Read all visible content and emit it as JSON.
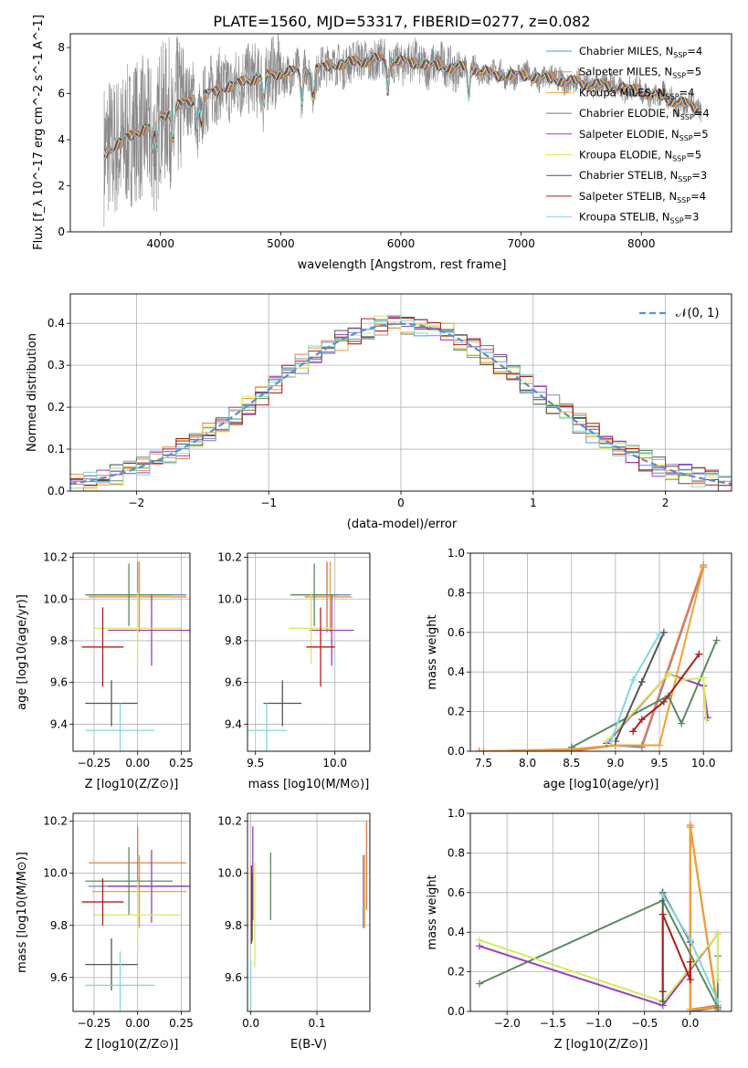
{
  "title": "PLATE=1560, MJD=53317, FIBERID=0277, z=0.082",
  "models": [
    {
      "name": "Chabrier MILES",
      "nssp": "4",
      "color": "#6a8cc8"
    },
    {
      "name": "Salpeter MILES",
      "nssp": "5",
      "color": "#e87c4a"
    },
    {
      "name": "Kroupa MILES",
      "nssp": "4",
      "color": "#f0a030"
    },
    {
      "name": "Chabrier ELODIE",
      "nssp": "4",
      "color": "#5a8a62"
    },
    {
      "name": "Salpeter ELODIE",
      "nssp": "5",
      "color": "#9b3fb8"
    },
    {
      "name": "Kroupa ELODIE",
      "nssp": "5",
      "color": "#d8ea5a"
    },
    {
      "name": "Chabrier STELIB",
      "nssp": "3",
      "color": "#555555"
    },
    {
      "name": "Salpeter STELIB",
      "nssp": "4",
      "color": "#b01c1c"
    },
    {
      "name": "Kroupa STELIB",
      "nssp": "3",
      "color": "#7fd8e0"
    }
  ],
  "chart_data": [
    {
      "id": "spectrum",
      "type": "line",
      "xlabel": "wavelength [Angstrom, rest frame]",
      "ylabel": "Flux [f_λ 10^-17 erg cm^-2 s^-1 A^-1]",
      "xlim": [
        3250,
        8750
      ],
      "ylim": [
        0,
        8.6
      ],
      "xticks": [
        4000,
        5000,
        6000,
        7000,
        8000
      ],
      "yticks": [
        0,
        2,
        4,
        6,
        8
      ],
      "grid": false,
      "legend": "top-right",
      "data_color": "#888888",
      "continuum": [
        [
          3530,
          3.4
        ],
        [
          3700,
          4.0
        ],
        [
          3900,
          4.6
        ],
        [
          4000,
          5.0
        ],
        [
          4200,
          5.6
        ],
        [
          4500,
          6.2
        ],
        [
          4800,
          6.7
        ],
        [
          5000,
          6.9
        ],
        [
          5200,
          7.0
        ],
        [
          5500,
          7.3
        ],
        [
          5800,
          7.5
        ],
        [
          6000,
          7.4
        ],
        [
          6300,
          7.2
        ],
        [
          6600,
          7.1
        ],
        [
          6800,
          6.8
        ],
        [
          7000,
          6.8
        ],
        [
          7300,
          6.6
        ],
        [
          7600,
          6.4
        ],
        [
          7800,
          6.3
        ],
        [
          8000,
          6.1
        ],
        [
          8200,
          5.8
        ],
        [
          8400,
          5.5
        ],
        [
          8500,
          5.3
        ]
      ]
    },
    {
      "id": "residuals",
      "type": "line",
      "xlabel": "(data-model)/error",
      "ylabel": "Normed distribution",
      "xlim": [
        -2.5,
        2.5
      ],
      "ylim": [
        0,
        0.47
      ],
      "xticks": [
        -2,
        -1,
        0,
        1,
        2
      ],
      "yticks": [
        0.0,
        0.1,
        0.2,
        0.3,
        0.4
      ],
      "grid": true,
      "legend": "top-right",
      "reference": {
        "label": "𝒩(0, 1)",
        "mean": 0,
        "sigma": 1,
        "color": "#5b8ed4"
      }
    },
    {
      "id": "age-vs-Z",
      "type": "scatter",
      "xlabel": "Z [log10(Z/Z⊙)]",
      "ylabel": "age [log10(age/yr)]",
      "xlim": [
        -0.37,
        0.3
      ],
      "ylim": [
        9.27,
        10.22
      ],
      "xticks": [
        -0.25,
        0.0,
        0.25
      ],
      "yticks": [
        9.4,
        9.6,
        9.8,
        10.0,
        10.2
      ],
      "grid": true,
      "points": [
        {
          "model": "Chabrier MILES",
          "x": 0.0,
          "xerr": 0.28,
          "y": 10.02,
          "yerr": 0.15
        },
        {
          "model": "Salpeter MILES",
          "x": 0.0,
          "xerr": 0.28,
          "y": 10.01,
          "yerr": 0.17
        },
        {
          "model": "Kroupa MILES",
          "x": 0.01,
          "xerr": 0.27,
          "y": 10.01,
          "yerr": 0.17
        },
        {
          "model": "Chabrier ELODIE",
          "x": -0.05,
          "xerr": 0.25,
          "y": 10.02,
          "yerr": 0.15
        },
        {
          "model": "Salpeter ELODIE",
          "x": 0.08,
          "xerr": 0.25,
          "y": 9.85,
          "yerr": 0.17
        },
        {
          "model": "Kroupa ELODIE",
          "x": 0.0,
          "xerr": 0.25,
          "y": 9.86,
          "yerr": 0.17
        },
        {
          "model": "Chabrier STELIB",
          "x": -0.15,
          "xerr": 0.15,
          "y": 9.5,
          "yerr": 0.11
        },
        {
          "model": "Salpeter STELIB",
          "x": -0.2,
          "xerr": 0.12,
          "y": 9.77,
          "yerr": 0.19
        },
        {
          "model": "Kroupa STELIB",
          "x": -0.1,
          "xerr": 0.2,
          "y": 9.37,
          "yerr": 0.13
        }
      ]
    },
    {
      "id": "age-vs-mass",
      "type": "scatter",
      "xlabel": "mass [log10(M/M⊙)]",
      "ylabel": "",
      "xlim": [
        9.45,
        10.22
      ],
      "ylim": [
        9.27,
        10.22
      ],
      "xticks": [
        9.5,
        10.0
      ],
      "yticks": [
        9.4,
        9.6,
        9.8,
        10.0,
        10.2
      ],
      "grid": true,
      "points": [
        {
          "model": "Chabrier MILES",
          "x": 9.95,
          "xerr": 0.15,
          "y": 10.02,
          "yerr": 0.15
        },
        {
          "model": "Salpeter MILES",
          "x": 9.95,
          "xerr": 0.14,
          "y": 10.01,
          "yerr": 0.17
        },
        {
          "model": "Kroupa MILES",
          "x": 9.97,
          "xerr": 0.14,
          "y": 10.01,
          "yerr": 0.17
        },
        {
          "model": "Chabrier ELODIE",
          "x": 9.87,
          "xerr": 0.15,
          "y": 10.02,
          "yerr": 0.15
        },
        {
          "model": "Salpeter ELODIE",
          "x": 9.98,
          "xerr": 0.14,
          "y": 9.85,
          "yerr": 0.17
        },
        {
          "model": "Kroupa ELODIE",
          "x": 9.85,
          "xerr": 0.14,
          "y": 9.86,
          "yerr": 0.17
        },
        {
          "model": "Chabrier STELIB",
          "x": 9.67,
          "xerr": 0.12,
          "y": 9.5,
          "yerr": 0.11
        },
        {
          "model": "Salpeter STELIB",
          "x": 9.91,
          "xerr": 0.09,
          "y": 9.77,
          "yerr": 0.19
        },
        {
          "model": "Kroupa STELIB",
          "x": 9.57,
          "xerr": 0.13,
          "y": 9.37,
          "yerr": 0.13
        }
      ]
    },
    {
      "id": "mass-weight-vs-age",
      "type": "line",
      "xlabel": "age [log10(age/yr)]",
      "ylabel": "mass weight",
      "xlim": [
        7.35,
        10.32
      ],
      "ylim": [
        0,
        1.0
      ],
      "xticks": [
        7.5,
        8.0,
        8.5,
        9.0,
        9.5,
        10.0
      ],
      "yticks": [
        0.0,
        0.2,
        0.4,
        0.6,
        0.8,
        1.0
      ],
      "grid": true,
      "series": [
        {
          "model": "Chabrier MILES",
          "x": [
            7.5,
            8.5,
            9.0,
            9.3,
            10.0
          ],
          "y": [
            0.0,
            0.01,
            0.03,
            0.02,
            0.93
          ]
        },
        {
          "model": "Salpeter MILES",
          "x": [
            7.45,
            8.5,
            9.0,
            9.3,
            10.0
          ],
          "y": [
            0.0,
            0.0,
            0.03,
            0.03,
            0.94
          ]
        },
        {
          "model": "Kroupa MILES",
          "x": [
            7.5,
            8.5,
            9.0,
            9.5,
            10.0
          ],
          "y": [
            0.0,
            0.01,
            0.03,
            0.03,
            0.93
          ]
        },
        {
          "model": "Chabrier ELODIE",
          "x": [
            8.5,
            9.6,
            9.75,
            10.15
          ],
          "y": [
            0.02,
            0.28,
            0.14,
            0.56
          ]
        },
        {
          "model": "Salpeter ELODIE",
          "x": [
            8.9,
            9.6,
            10.0,
            10.05
          ],
          "y": [
            0.04,
            0.39,
            0.33,
            0.17
          ]
        },
        {
          "model": "Kroupa ELODIE",
          "x": [
            8.9,
            9.6,
            9.75,
            10.0,
            10.03
          ],
          "y": [
            0.05,
            0.39,
            0.36,
            0.37,
            0.16
          ]
        },
        {
          "model": "Chabrier STELIB",
          "x": [
            9.0,
            9.3,
            9.55
          ],
          "y": [
            0.05,
            0.35,
            0.6
          ]
        },
        {
          "model": "Salpeter STELIB",
          "x": [
            9.2,
            9.3,
            9.55,
            9.95
          ],
          "y": [
            0.1,
            0.16,
            0.25,
            0.49
          ]
        },
        {
          "model": "Kroupa STELIB",
          "x": [
            8.95,
            9.2,
            9.5
          ],
          "y": [
            0.05,
            0.36,
            0.59
          ]
        }
      ]
    },
    {
      "id": "mass-vs-Z",
      "type": "scatter",
      "xlabel": "Z [log10(Z/Z⊙)]",
      "ylabel": "mass [log10(M/M⊙)]",
      "xlim": [
        -0.37,
        0.3
      ],
      "ylim": [
        9.47,
        10.23
      ],
      "xticks": [
        -0.25,
        0.0,
        0.25
      ],
      "yticks": [
        9.6,
        9.8,
        10.0,
        10.2
      ],
      "grid": true,
      "points": [
        {
          "model": "Chabrier MILES",
          "x": 0.0,
          "xerr": 0.28,
          "y": 9.95,
          "yerr": 0.15
        },
        {
          "model": "Salpeter MILES",
          "x": 0.0,
          "xerr": 0.28,
          "y": 10.04,
          "yerr": 0.14
        },
        {
          "model": "Kroupa MILES",
          "x": 0.01,
          "xerr": 0.27,
          "y": 9.93,
          "yerr": 0.14
        },
        {
          "model": "Chabrier ELODIE",
          "x": -0.05,
          "xerr": 0.25,
          "y": 9.97,
          "yerr": 0.13
        },
        {
          "model": "Salpeter ELODIE",
          "x": 0.08,
          "xerr": 0.25,
          "y": 9.95,
          "yerr": 0.14
        },
        {
          "model": "Kroupa ELODIE",
          "x": 0.0,
          "xerr": 0.25,
          "y": 9.84,
          "yerr": 0.13
        },
        {
          "model": "Chabrier STELIB",
          "x": -0.15,
          "xerr": 0.15,
          "y": 9.65,
          "yerr": 0.1
        },
        {
          "model": "Salpeter STELIB",
          "x": -0.2,
          "xerr": 0.12,
          "y": 9.89,
          "yerr": 0.09
        },
        {
          "model": "Kroupa STELIB",
          "x": -0.1,
          "xerr": 0.2,
          "y": 9.57,
          "yerr": 0.13
        }
      ]
    },
    {
      "id": "mass-vs-EBV",
      "type": "scatter",
      "xlabel": "E(B-V)",
      "ylabel": "",
      "xlim": [
        -0.005,
        0.18
      ],
      "ylim": [
        9.47,
        10.23
      ],
      "xticks": [
        0.0,
        0.1
      ],
      "yticks": [
        9.6,
        9.8,
        10.0,
        10.2
      ],
      "grid": true,
      "points": [
        {
          "model": "Chabrier MILES",
          "x": 0.17,
          "y": 9.93,
          "yerr": 0.14
        },
        {
          "model": "Salpeter MILES",
          "x": 0.175,
          "y": 10.03,
          "yerr": 0.17
        },
        {
          "model": "Kroupa MILES",
          "x": 0.172,
          "y": 9.93,
          "yerr": 0.14
        },
        {
          "model": "Chabrier ELODIE",
          "x": 0.03,
          "y": 9.95,
          "yerr": 0.13
        },
        {
          "model": "Salpeter ELODIE",
          "x": 0.003,
          "y": 10.0,
          "yerr": 0.18
        },
        {
          "model": "Kroupa ELODIE",
          "x": 0.006,
          "y": 9.84,
          "yerr": 0.2
        },
        {
          "model": "Chabrier STELIB",
          "x": 0.002,
          "y": 9.87,
          "yerr": 0.13
        },
        {
          "model": "Salpeter STELIB",
          "x": 0.001,
          "y": 9.88,
          "yerr": 0.15
        },
        {
          "model": "Kroupa STELIB",
          "x": 0.0,
          "y": 9.57,
          "yerr": 0.1
        }
      ]
    },
    {
      "id": "mass-weight-vs-Z",
      "type": "line",
      "xlabel": "Z [log10(Z/Z⊙)]",
      "ylabel": "mass weight",
      "xlim": [
        -2.4,
        0.45
      ],
      "ylim": [
        0,
        1.0
      ],
      "xticks": [
        -2.0,
        -1.5,
        -1.0,
        -0.5,
        0.0
      ],
      "yticks": [
        0.0,
        0.2,
        0.4,
        0.6,
        0.8,
        1.0
      ],
      "grid": true,
      "series": [
        {
          "model": "Chabrier MILES",
          "x": [
            0.3,
            0.0,
            0.0,
            0.3
          ],
          "y": [
            0.01,
            0.93,
            0.0,
            0.02
          ]
        },
        {
          "model": "Salpeter MILES",
          "x": [
            0.3,
            0.0,
            0.0,
            0.3
          ],
          "y": [
            0.0,
            0.94,
            0.01,
            0.03
          ]
        },
        {
          "model": "Kroupa MILES",
          "x": [
            0.3,
            0.0,
            0.0,
            0.3
          ],
          "y": [
            0.02,
            0.93,
            0.01,
            0.02
          ]
        },
        {
          "model": "Chabrier ELODIE",
          "x": [
            -2.3,
            -0.3,
            0.3,
            0.3
          ],
          "y": [
            0.14,
            0.56,
            0.02,
            0.28
          ]
        },
        {
          "model": "Salpeter ELODIE",
          "x": [
            -2.3,
            -0.3,
            0.3
          ],
          "y": [
            0.33,
            0.03,
            0.39
          ]
        },
        {
          "model": "Kroupa ELODIE",
          "x": [
            -2.3,
            -0.3,
            0.3,
            0.3
          ],
          "y": [
            0.36,
            0.05,
            0.39,
            0.16
          ]
        },
        {
          "model": "Chabrier STELIB",
          "x": [
            -0.3,
            -0.3,
            0.0
          ],
          "y": [
            0.05,
            0.6,
            0.35
          ]
        },
        {
          "model": "Salpeter STELIB",
          "x": [
            -0.3,
            -0.3,
            0.0,
            0.0
          ],
          "y": [
            0.1,
            0.49,
            0.16,
            0.25
          ]
        },
        {
          "model": "Kroupa STELIB",
          "x": [
            -0.3,
            0.0,
            0.3
          ],
          "y": [
            0.59,
            0.36,
            0.05
          ]
        }
      ]
    }
  ]
}
